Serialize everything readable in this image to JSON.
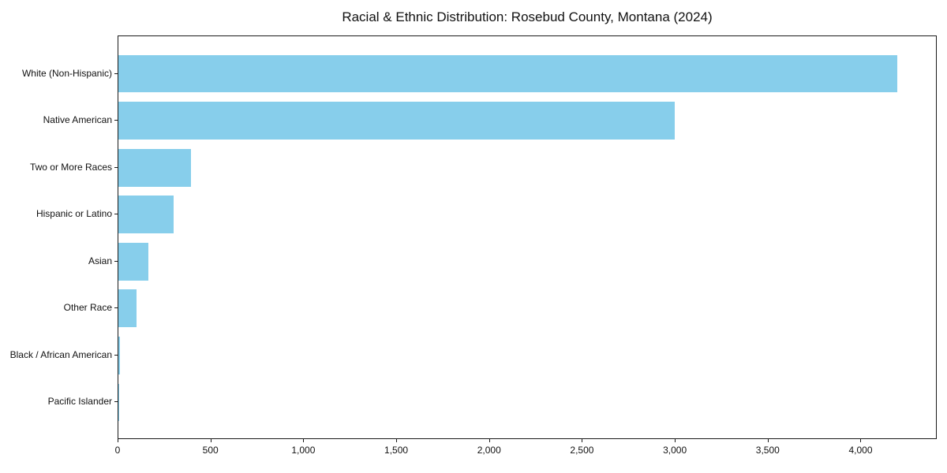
{
  "chart_data": {
    "type": "bar",
    "orientation": "horizontal",
    "title": "Racial & Ethnic Distribution: Rosebud County, Montana (2024)",
    "categories": [
      "White (Non-Hispanic)",
      "Native American",
      "Two or More Races",
      "Hispanic or Latino",
      "Asian",
      "Other Race",
      "Black / African American",
      "Pacific Islander"
    ],
    "values": [
      4200,
      3000,
      390,
      300,
      160,
      100,
      8,
      2
    ],
    "xlabel": "",
    "ylabel": "",
    "xlim": [
      0,
      4410
    ],
    "x_ticks": [
      0,
      500,
      1000,
      1500,
      2000,
      2500,
      3000,
      3500,
      4000
    ],
    "x_tick_labels": [
      "0",
      "500",
      "1,000",
      "1,500",
      "2,000",
      "2,500",
      "3,000",
      "3,500",
      "4,000"
    ],
    "bar_color": "#87CEEB",
    "grid": false,
    "legend": null
  }
}
